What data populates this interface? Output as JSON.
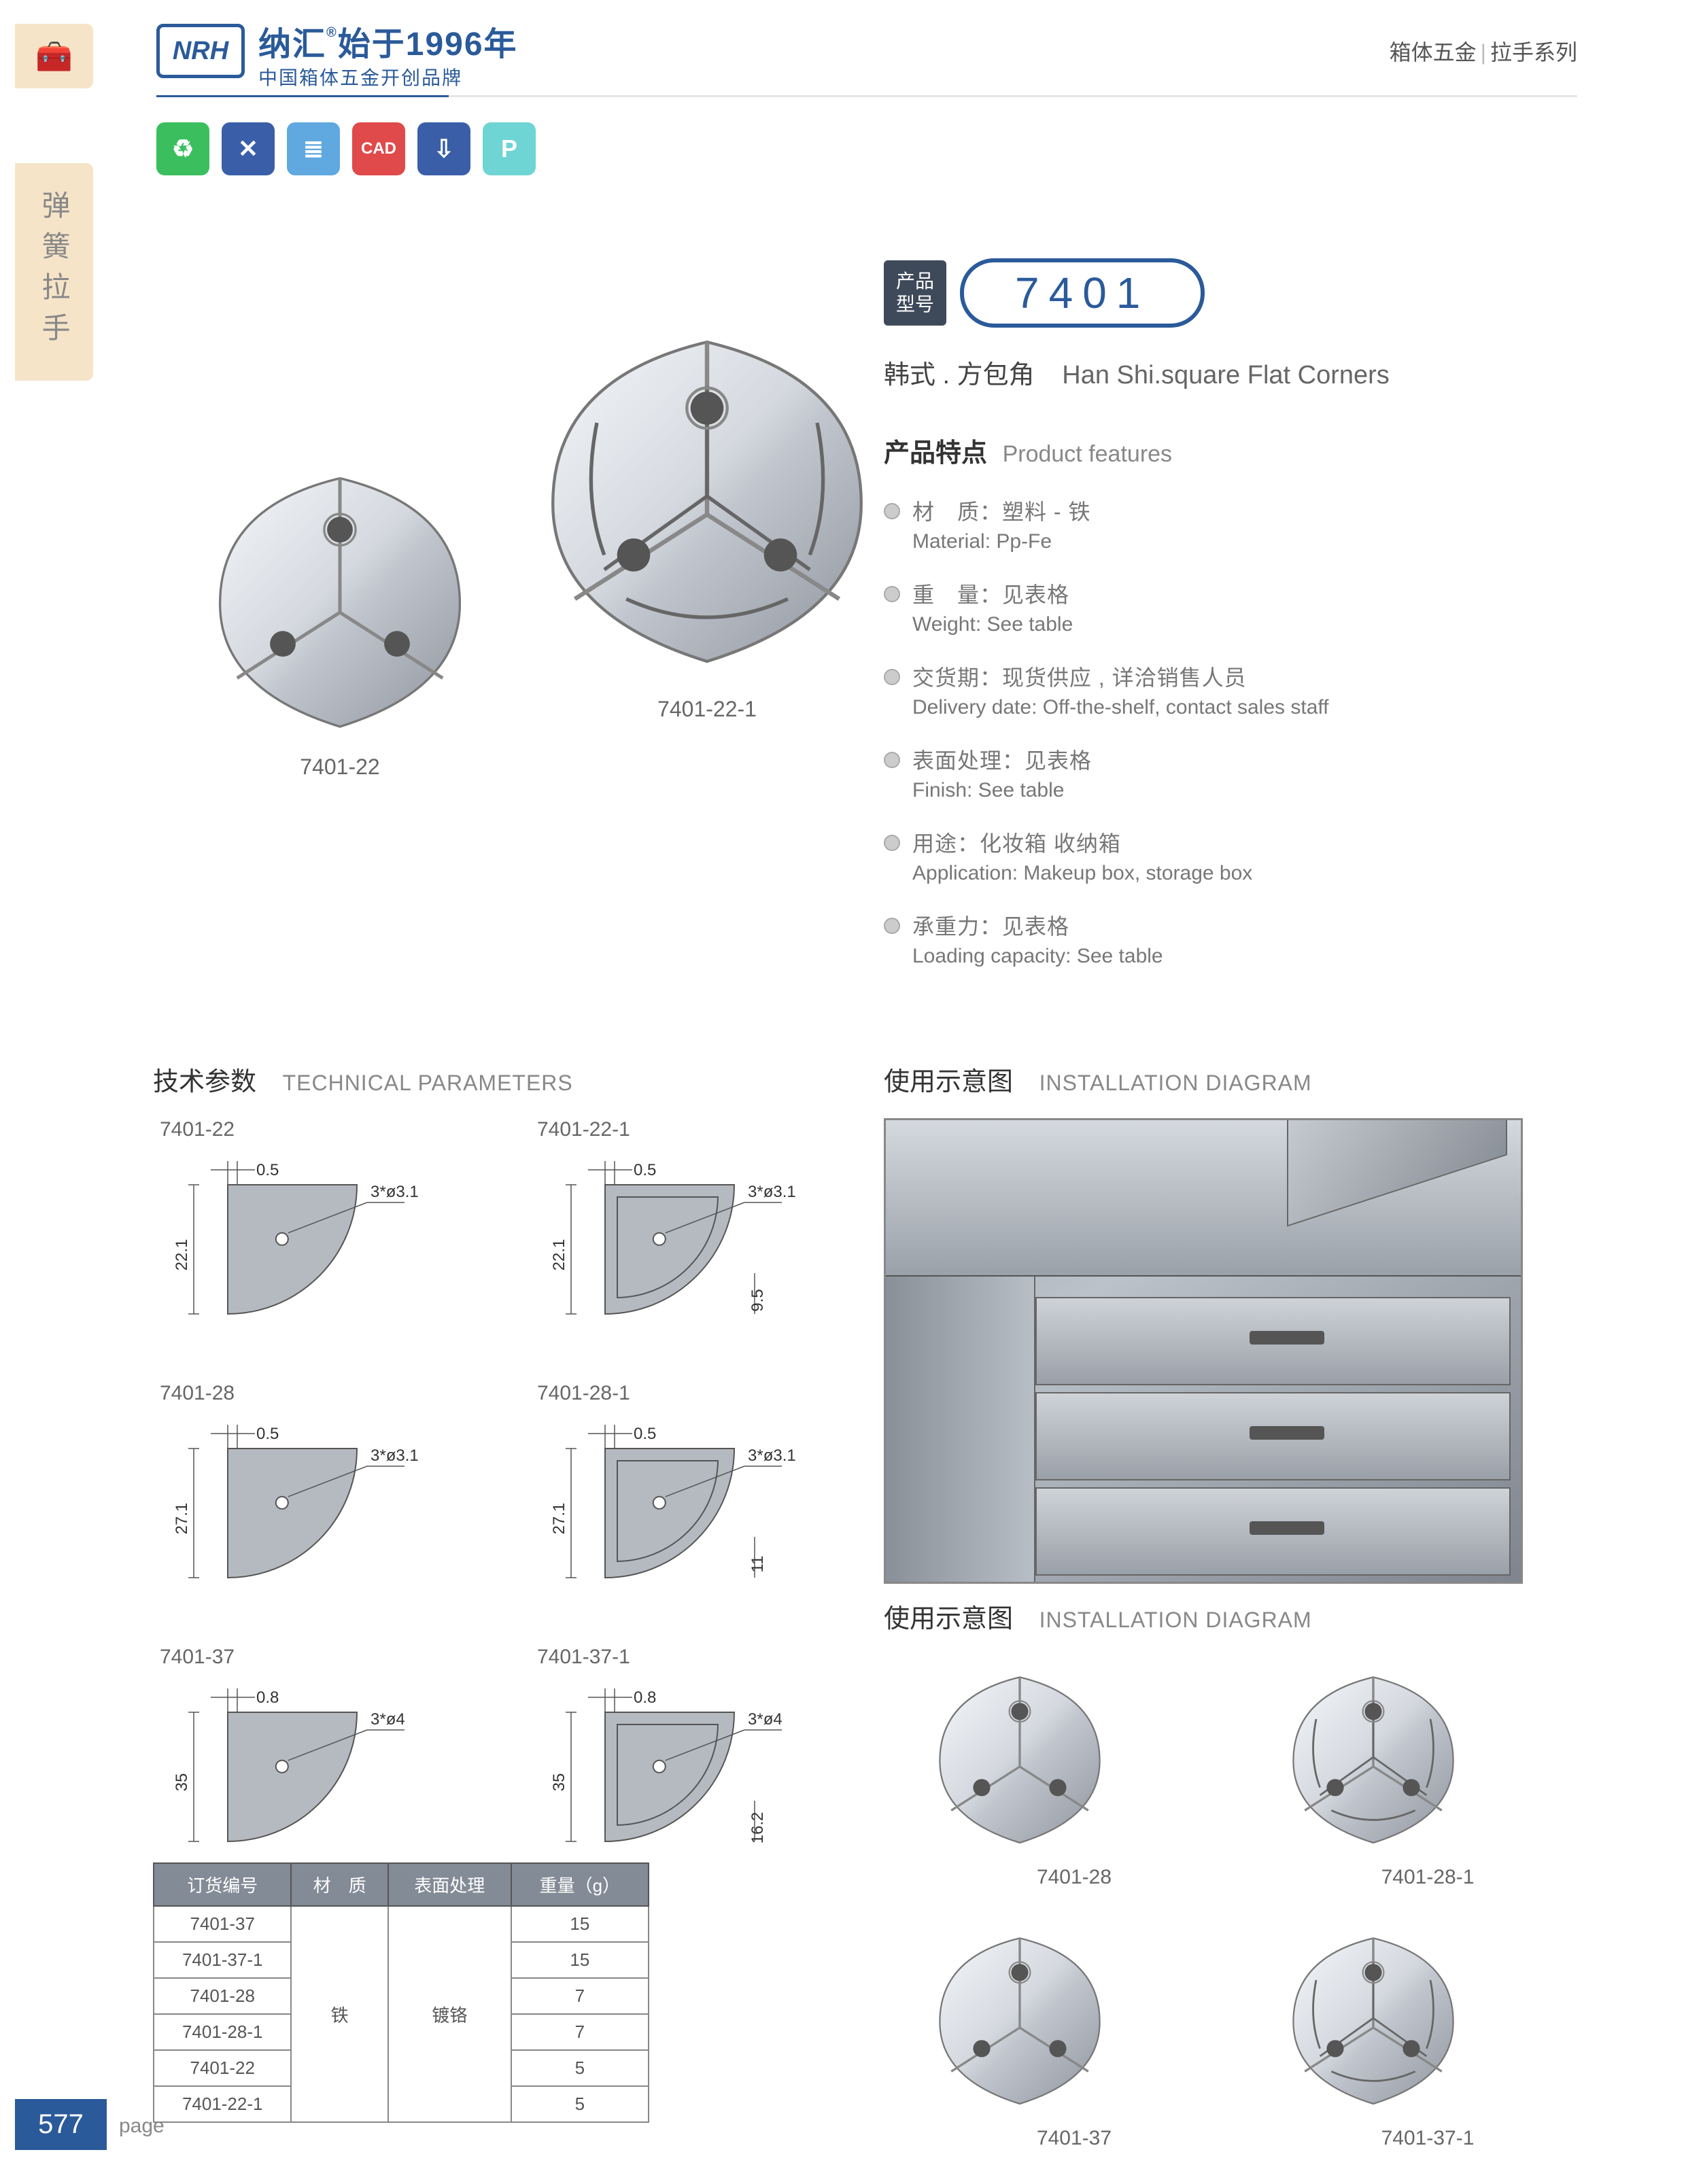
{
  "brand": {
    "logo_text": "NRH",
    "title_cn": "纳汇",
    "title_since": "始于1996年",
    "subtitle": "中国箱体五金开创品牌",
    "reg": "®"
  },
  "breadcrumb": {
    "a": "箱体五金",
    "b": "拉手系列"
  },
  "side_tab": "弹簧拉手",
  "feature_icons": [
    {
      "bg": "#3bbf5e",
      "glyph": "♻"
    },
    {
      "bg": "#3a5fa8",
      "glyph": "✕"
    },
    {
      "bg": "#5fa8e0",
      "glyph": "≣"
    },
    {
      "bg": "#e04a4a",
      "glyph": "CAD"
    },
    {
      "bg": "#3a5fa8",
      "glyph": "⇩"
    },
    {
      "bg": "#6fd4d4",
      "glyph": "P"
    }
  ],
  "hero": [
    {
      "id": "hero-small",
      "label": "7401-22",
      "size": 420
    },
    {
      "id": "hero-big",
      "label": "7401-22-1",
      "size": 540
    }
  ],
  "model": {
    "tag_l1": "产品",
    "tag_l2": "型号",
    "number": "7401"
  },
  "prod_name": {
    "cn": "韩式 . 方包角",
    "en": "Han Shi.square Flat Corners"
  },
  "features_title": {
    "cn": "产品特点",
    "en": "Product features"
  },
  "features": [
    {
      "cn": "材　质：塑料 - 铁",
      "en": "Material: Pp-Fe"
    },
    {
      "cn": "重　量：见表格",
      "en": "Weight: See table"
    },
    {
      "cn": "交货期：现货供应 , 详洽销售人员",
      "en": "Delivery date: Off-the-shelf, contact sales staff"
    },
    {
      "cn": "表面处理：见表格",
      "en": "Finish: See table"
    },
    {
      "cn": "用途：化妆箱 收纳箱",
      "en": "Application: Makeup box, storage box"
    },
    {
      "cn": "承重力：见表格",
      "en": "Loading capacity: See table"
    }
  ],
  "tech_title": {
    "cn": "技术参数",
    "en": "TECHNICAL PARAMETERS"
  },
  "tech_items": [
    {
      "label": "7401-22",
      "h": "22.1",
      "t": "0.5",
      "hole": "3*ø3.1",
      "inner": null
    },
    {
      "label": "7401-22-1",
      "h": "22.1",
      "t": "0.5",
      "hole": "3*ø3.1",
      "inner": "9.5"
    },
    {
      "label": "7401-28",
      "h": "27.1",
      "t": "0.5",
      "hole": "3*ø3.1",
      "inner": null
    },
    {
      "label": "7401-28-1",
      "h": "27.1",
      "t": "0.5",
      "hole": "3*ø3.1",
      "inner": "11"
    },
    {
      "label": "7401-37",
      "h": "35",
      "t": "0.8",
      "hole": "3*ø4",
      "inner": null
    },
    {
      "label": "7401-37-1",
      "h": "35",
      "t": "0.8",
      "hole": "3*ø4",
      "inner": "16.2"
    }
  ],
  "spec_table": {
    "headers": [
      "订货编号",
      "材　质",
      "表面处理",
      "重量（g）"
    ],
    "material": "铁",
    "finish": "镀铬",
    "rows": [
      {
        "code": "7401-37",
        "weight": "15"
      },
      {
        "code": "7401-37-1",
        "weight": "15"
      },
      {
        "code": "7401-28",
        "weight": "7"
      },
      {
        "code": "7401-28-1",
        "weight": "7"
      },
      {
        "code": "7401-22",
        "weight": "5"
      },
      {
        "code": "7401-22-1",
        "weight": "5"
      }
    ]
  },
  "install_title": {
    "cn": "使用示意图",
    "en": "INSTALLATION DIAGRAM"
  },
  "install_items": [
    {
      "label": "7401-28"
    },
    {
      "label": "7401-28-1"
    },
    {
      "label": "7401-37"
    },
    {
      "label": "7401-37-1"
    }
  ],
  "page": {
    "number": "577",
    "label": "page"
  },
  "colors": {
    "brand_blue": "#2a5a9a",
    "tab_bg": "#f6e4c8",
    "table_head": "#838b96",
    "metal_light": "#e8ebef",
    "metal_dark": "#9aa0a8"
  }
}
